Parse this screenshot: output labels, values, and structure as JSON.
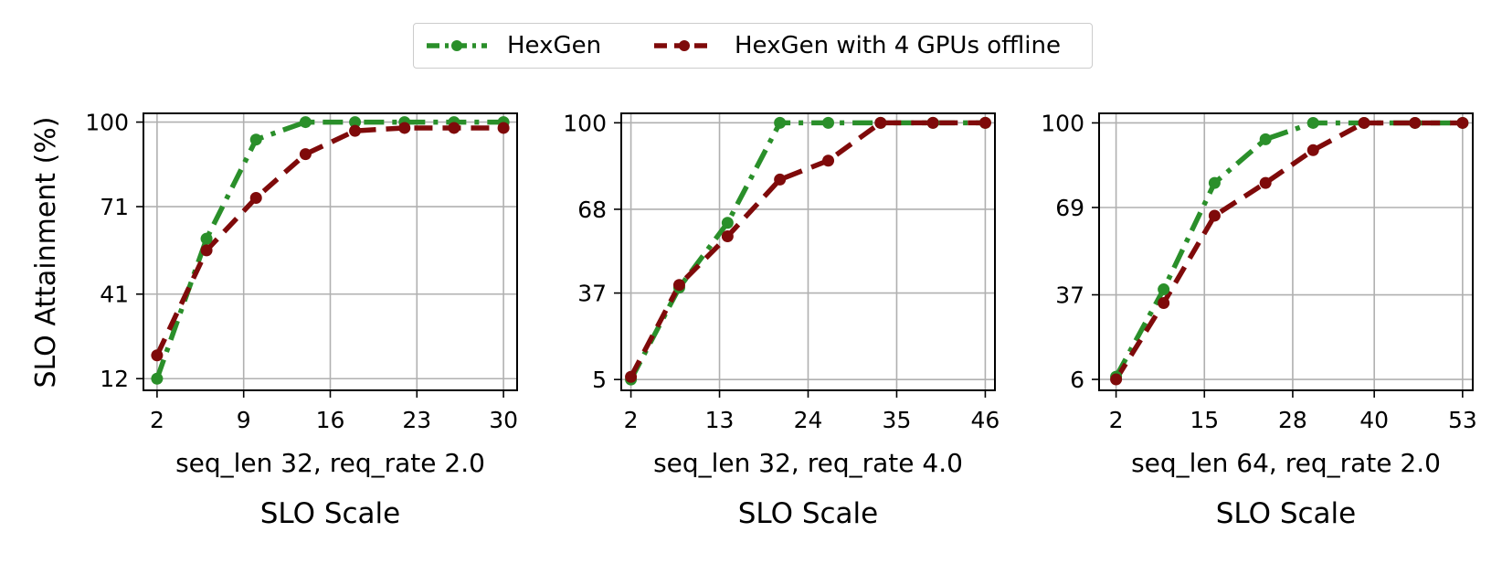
{
  "legend": {
    "items": [
      {
        "label": "HexGen",
        "color": "#2a8f2a",
        "style": "dashdot"
      },
      {
        "label": "HexGen with 4 GPUs offline",
        "color": "#7f0a0a",
        "style": "dashed"
      }
    ]
  },
  "shared_ylabel": "SLO Attainment (%)",
  "chart_data": [
    {
      "type": "line",
      "subtitle": "seq_len 32, req_rate 2.0",
      "xlabel": "SLO Scale",
      "ylabel": "SLO Attainment (%)",
      "xlim": [
        0.9,
        31.1
      ],
      "ylim": [
        8.0,
        103.0
      ],
      "xticks": [
        2,
        9,
        16,
        23,
        30
      ],
      "yticks": [
        12,
        41,
        71,
        100
      ],
      "grid": true,
      "series": [
        {
          "name": "HexGen",
          "x": [
            2,
            6,
            10,
            14,
            18,
            22,
            26,
            30
          ],
          "values": [
            12,
            60,
            94,
            100,
            100,
            100,
            100,
            100
          ]
        },
        {
          "name": "HexGen with 4 GPUs offline",
          "x": [
            2,
            6,
            10,
            14,
            18,
            22,
            26,
            30
          ],
          "values": [
            20,
            56,
            74,
            89,
            97,
            98,
            98,
            98
          ]
        }
      ]
    },
    {
      "type": "line",
      "subtitle": "seq_len 32, req_rate 4.0",
      "xlabel": "SLO Scale",
      "ylabel": "",
      "xlim": [
        0.8,
        47.2
      ],
      "ylim": [
        1.0,
        103.5
      ],
      "xticks": [
        2,
        13,
        24,
        35,
        46
      ],
      "yticks": [
        5,
        37,
        68,
        100
      ],
      "grid": true,
      "series": [
        {
          "name": "HexGen",
          "x": [
            2,
            8,
            14,
            20.5,
            26.5,
            33,
            39.5,
            46
          ],
          "values": [
            5,
            39,
            63,
            100,
            100,
            100,
            100,
            100
          ]
        },
        {
          "name": "HexGen with 4 GPUs offline",
          "x": [
            2,
            8,
            14,
            20.5,
            26.5,
            33,
            39.5,
            46
          ],
          "values": [
            6,
            40,
            58,
            79,
            86,
            100,
            100,
            100
          ]
        }
      ]
    },
    {
      "type": "line",
      "subtitle": "seq_len 64, req_rate 2.0",
      "xlabel": "SLO Scale",
      "ylabel": "",
      "xlim": [
        -0.5,
        54.5
      ],
      "ylim": [
        2.0,
        103.5
      ],
      "xticks": [
        2,
        15,
        28,
        40,
        53
      ],
      "yticks": [
        6,
        37,
        69,
        100
      ],
      "grid": true,
      "series": [
        {
          "name": "HexGen",
          "x": [
            2,
            9,
            16.5,
            24,
            31,
            38.5,
            46,
            53
          ],
          "values": [
            7,
            39,
            78,
            94,
            100,
            100,
            100,
            100
          ]
        },
        {
          "name": "HexGen with 4 GPUs offline",
          "x": [
            2,
            9,
            16.5,
            24,
            31,
            38.5,
            46,
            53
          ],
          "values": [
            6,
            34,
            66,
            78,
            90,
            100,
            100,
            100
          ]
        }
      ]
    }
  ]
}
